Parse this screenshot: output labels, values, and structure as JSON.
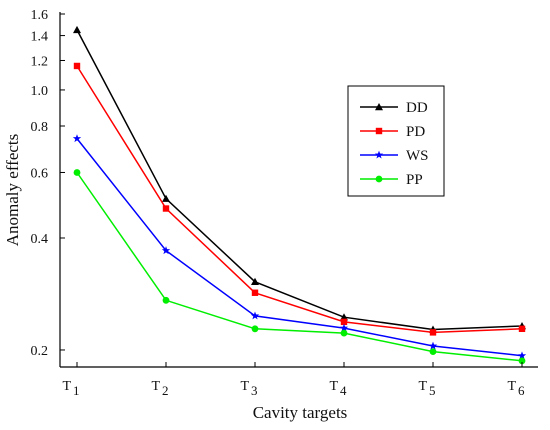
{
  "chart_data": {
    "type": "line",
    "title": "",
    "xlabel": "Cavity targets",
    "ylabel": "Anomaly effects",
    "yscale": "log",
    "ylim": [
      0.18,
      1.6
    ],
    "categories": [
      {
        "main": "T",
        "sub": "1"
      },
      {
        "main": "T",
        "sub": "2"
      },
      {
        "main": "T",
        "sub": "3"
      },
      {
        "main": "T",
        "sub": "4"
      },
      {
        "main": "T",
        "sub": "5"
      },
      {
        "main": "T",
        "sub": "6"
      }
    ],
    "y_ticks": [
      {
        "value": 0.2,
        "label": "0.2"
      },
      {
        "value": 0.4,
        "label": "0.4"
      },
      {
        "value": 0.6,
        "label": "0.6"
      },
      {
        "value": 0.8,
        "label": "0.8"
      },
      {
        "value": 1.0,
        "label": "1.0"
      },
      {
        "value": 1.2,
        "label": "1.2"
      },
      {
        "value": 1.4,
        "label": "1.4"
      },
      {
        "value": 1.6,
        "label": "1.6"
      }
    ],
    "grid": false,
    "legend_position": "right",
    "series": [
      {
        "name": "DD",
        "color": "#000000",
        "marker": "triangle",
        "values": [
          1.45,
          0.51,
          0.305,
          0.245,
          0.227,
          0.232
        ]
      },
      {
        "name": "PD",
        "color": "#ff0000",
        "marker": "square",
        "values": [
          1.16,
          0.48,
          0.285,
          0.238,
          0.223,
          0.228
        ]
      },
      {
        "name": "WS",
        "color": "#0000ff",
        "marker": "star",
        "values": [
          0.74,
          0.37,
          0.247,
          0.229,
          0.205,
          0.193
        ]
      },
      {
        "name": "PP",
        "color": "#00ee00",
        "marker": "circle",
        "values": [
          0.6,
          0.272,
          0.228,
          0.222,
          0.198,
          0.187
        ]
      }
    ]
  }
}
